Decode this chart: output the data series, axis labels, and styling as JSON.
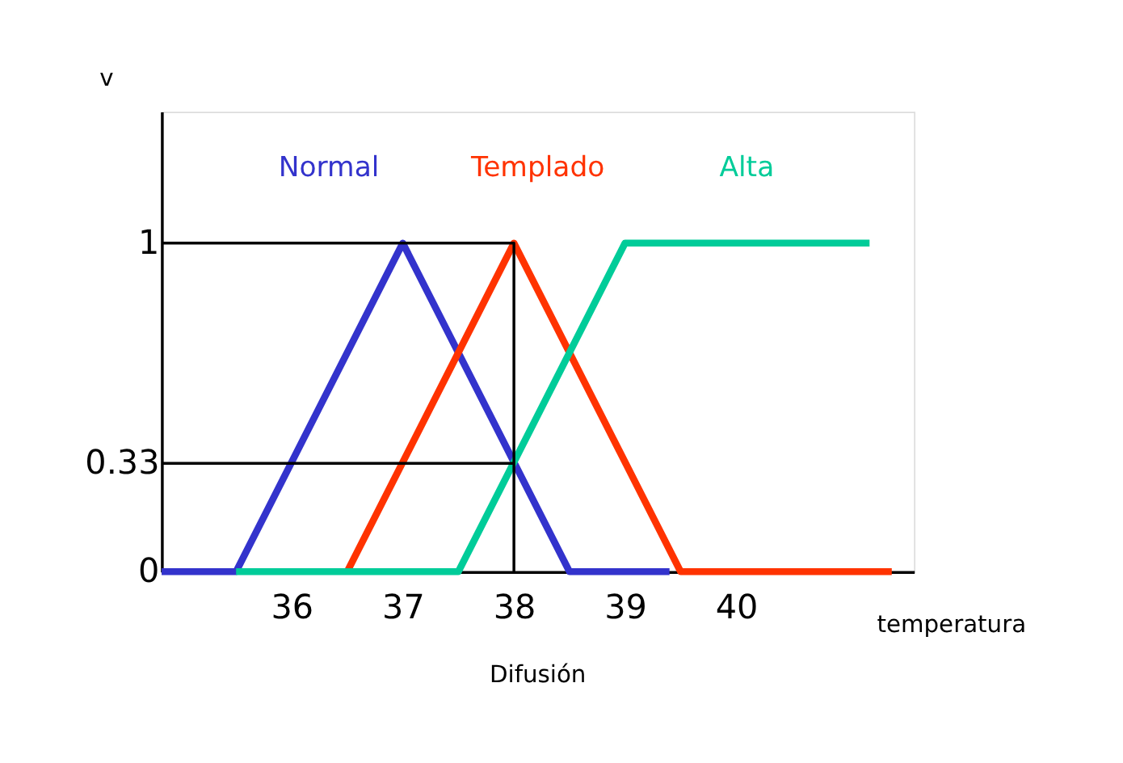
{
  "chart_data": {
    "type": "line",
    "ylabel": "v",
    "xlabel": "temperatura",
    "annotations": [
      "Difusión"
    ],
    "xlim": [
      34.83,
      41.6
    ],
    "ylim": [
      0,
      1.4
    ],
    "xticks": [
      36,
      37,
      38,
      39,
      40
    ],
    "yticks": [
      0,
      0.33,
      1
    ],
    "grid": false,
    "legend": false,
    "marker": "none",
    "line_style": "solid",
    "series": [
      {
        "name": "Normal",
        "color": "#3333cc",
        "x": [
          34.83,
          35.5,
          37,
          38.5,
          39.4
        ],
        "values": [
          0,
          0,
          1,
          0,
          0
        ]
      },
      {
        "name": "Templado",
        "color": "#ff3300",
        "x": [
          36.5,
          38,
          39.5,
          41.4
        ],
        "values": [
          0,
          1,
          0,
          0
        ]
      },
      {
        "name": "Alta",
        "color": "#00cc99",
        "x": [
          35.5,
          37.5,
          39,
          41.2
        ],
        "values": [
          0,
          0,
          1,
          1
        ]
      },
      {
        "color": "#000000",
        "x": [
          34.83,
          38,
          38
        ],
        "values": [
          1,
          1,
          0
        ]
      },
      {
        "color": "#000000",
        "x": [
          34.83,
          38
        ],
        "values": [
          0.33,
          0.33
        ]
      }
    ]
  }
}
